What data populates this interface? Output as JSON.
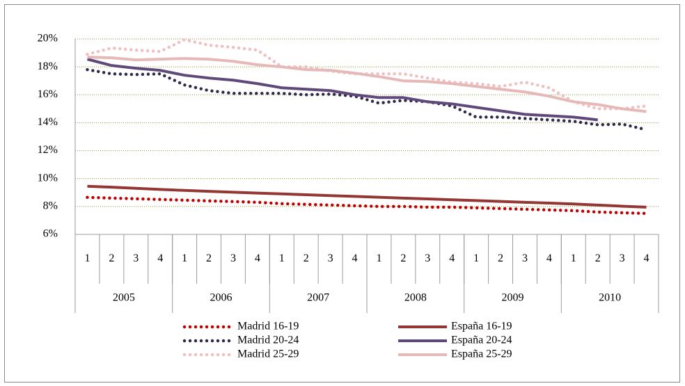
{
  "chart_data": {
    "type": "line",
    "categories": [
      "1",
      "2",
      "3",
      "4",
      "1",
      "2",
      "3",
      "4",
      "1",
      "2",
      "3",
      "4",
      "1",
      "2",
      "3",
      "4",
      "1",
      "2",
      "3",
      "4",
      "1",
      "2",
      "3",
      "4"
    ],
    "groups": [
      "2005",
      "2006",
      "2007",
      "2008",
      "2009",
      "2010"
    ],
    "ylim": [
      6,
      20
    ],
    "yticks": [
      {
        "value": 6,
        "label": "6%"
      },
      {
        "value": 8,
        "label": "8%"
      },
      {
        "value": 10,
        "label": "10%"
      },
      {
        "value": 12,
        "label": "12%"
      },
      {
        "value": 14,
        "label": "14%"
      },
      {
        "value": 16,
        "label": "16%"
      },
      {
        "value": 18,
        "label": "18%"
      },
      {
        "value": 20,
        "label": "20%"
      }
    ],
    "grid": true,
    "series": [
      {
        "name": "Madrid 16-19",
        "color": "#c00000",
        "style": "dotted",
        "values": [
          8.65,
          8.6,
          8.55,
          8.5,
          8.45,
          8.4,
          8.35,
          8.3,
          8.2,
          8.15,
          8.1,
          8.05,
          8.0,
          8.0,
          7.95,
          7.95,
          7.9,
          7.85,
          7.8,
          7.75,
          7.7,
          7.6,
          7.55,
          7.5
        ]
      },
      {
        "name": "España 16-19",
        "color": "#943634",
        "style": "solid",
        "values": [
          9.45,
          9.38,
          9.3,
          9.22,
          9.15,
          9.08,
          9.02,
          8.96,
          8.9,
          8.84,
          8.78,
          8.72,
          8.66,
          8.6,
          8.54,
          8.48,
          8.42,
          8.36,
          8.3,
          8.24,
          8.18,
          8.1,
          8.02,
          7.95
        ]
      },
      {
        "name": "Madrid 20-24",
        "color": "#2e2a4a",
        "style": "dotted",
        "values": [
          17.8,
          17.5,
          17.45,
          17.5,
          16.7,
          16.3,
          16.1,
          16.1,
          16.1,
          16.0,
          16.05,
          15.9,
          15.4,
          15.6,
          15.5,
          15.2,
          14.4,
          14.4,
          14.3,
          14.2,
          14.1,
          13.85,
          13.9,
          13.5
        ]
      },
      {
        "name": "España 20-24",
        "color": "#5f497a",
        "style": "solid",
        "values": [
          18.55,
          18.1,
          17.9,
          17.75,
          17.4,
          17.2,
          17.05,
          16.8,
          16.5,
          16.4,
          16.3,
          16.0,
          15.8,
          15.8,
          15.5,
          15.35,
          15.1,
          14.85,
          14.6,
          14.5,
          14.4,
          14.2,
          null,
          null
        ]
      },
      {
        "name": "Madrid 25-29",
        "color": "#f0c0c0",
        "style": "dotted",
        "values": [
          18.9,
          19.35,
          19.2,
          19.1,
          19.95,
          19.55,
          19.4,
          19.2,
          18.0,
          18.0,
          17.7,
          17.5,
          17.5,
          17.5,
          17.2,
          16.9,
          16.8,
          16.6,
          16.9,
          16.5,
          15.5,
          15.0,
          15.0,
          15.2
        ]
      },
      {
        "name": "España 25-29",
        "color": "#e6b9b8",
        "style": "solid",
        "values": [
          18.7,
          18.65,
          18.5,
          18.55,
          18.6,
          18.55,
          18.4,
          18.15,
          18.0,
          17.8,
          17.75,
          17.55,
          17.3,
          17.0,
          16.95,
          16.8,
          16.6,
          16.4,
          16.2,
          15.9,
          15.5,
          15.3,
          15.0,
          14.8
        ]
      }
    ]
  }
}
